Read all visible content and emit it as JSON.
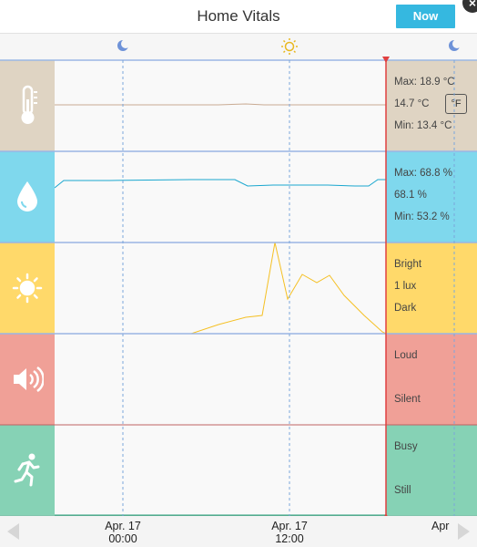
{
  "header": {
    "title": "Home Vitals",
    "now_label": "Now",
    "close_glyph": "×"
  },
  "day_markers": [
    {
      "icon": "moon-icon"
    },
    {
      "icon": "sun-icon"
    },
    {
      "icon": "moon-icon"
    }
  ],
  "temperature": {
    "icon": "thermometer-icon",
    "max": "Max: 18.9 °C",
    "current": "14.7 °C",
    "min": "Min: 13.4 °C",
    "unit_toggle": "°F"
  },
  "humidity": {
    "icon": "water-drop-icon",
    "max": "Max: 68.8 %",
    "current": "68.1 %",
    "min": "Min: 53.2 %"
  },
  "light": {
    "icon": "sun-icon",
    "top": "Bright",
    "current": "1 lux",
    "bottom": "Dark"
  },
  "sound": {
    "icon": "speaker-icon",
    "top": "Loud",
    "bottom": "Silent"
  },
  "motion": {
    "icon": "running-person-icon",
    "top": "Busy",
    "bottom": "Still"
  },
  "timeline": {
    "labels": [
      {
        "date": "Apr. 17",
        "time": "00:00"
      },
      {
        "date": "Apr. 17",
        "time": "12:00"
      },
      {
        "date": "Apr",
        "time": ""
      }
    ]
  },
  "colors": {
    "temperature": "#dfd4c3",
    "humidity": "#7fd8ed",
    "light": "#ffd96a",
    "sound": "#f0a097",
    "motion": "#86d2b5",
    "accent": "#35b8e0",
    "now_line": "#e04040"
  }
}
